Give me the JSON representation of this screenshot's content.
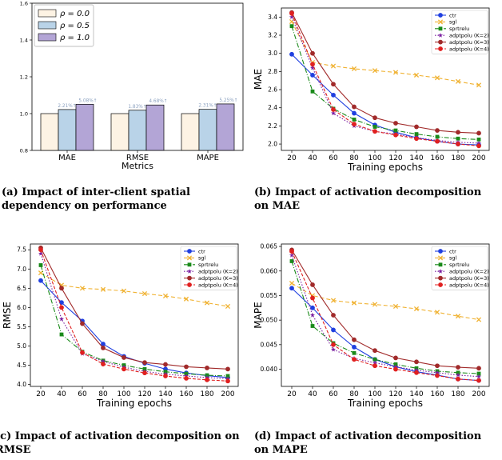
{
  "captions": {
    "a": {
      "label": "(a)",
      "text": "Impact of inter-client spatial dependency on performance"
    },
    "b": {
      "label": "(b)",
      "text": "Impact of activation decomposition on MAE"
    },
    "c": {
      "label": "(c)",
      "text": "Impact of activation decomposition on RMSE"
    },
    "d": {
      "label": "(d)",
      "text": "Impact of activation decomposition on MAPE"
    }
  },
  "chart_data": [
    {
      "id": "a",
      "type": "bar",
      "xlabel": "Metrics",
      "ylabel": "",
      "ylim": [
        0.8,
        1.6
      ],
      "yticks": [
        "0.8",
        "1.0",
        "1.2",
        "1.4",
        "1.6"
      ],
      "categories": [
        "MAE",
        "RMSE",
        "MAPE"
      ],
      "series": [
        {
          "name": "ρ = 0.0",
          "color": "#fdf3e4",
          "values": [
            1.0,
            1.0,
            1.0
          ]
        },
        {
          "name": "ρ = 0.5",
          "color": "#b9d3e8",
          "values": [
            1.0221,
            1.0183,
            1.0231
          ]
        },
        {
          "name": "ρ = 1.0",
          "color": "#b3a5d6",
          "values": [
            1.0508,
            1.0468,
            1.0525
          ]
        }
      ],
      "annotations": [
        {
          "category": 0,
          "series": 1,
          "text": "2.21%↑"
        },
        {
          "category": 0,
          "series": 2,
          "text": "5.08%↑"
        },
        {
          "category": 1,
          "series": 1,
          "text": "1.83%↑"
        },
        {
          "category": 1,
          "series": 2,
          "text": "4.68%↑"
        },
        {
          "category": 2,
          "series": 1,
          "text": "2.31%↑"
        },
        {
          "category": 2,
          "series": 2,
          "text": "5.25%↑"
        }
      ],
      "legend": "top-left"
    },
    {
      "id": "b",
      "type": "line",
      "xlabel": "Training epochs",
      "ylabel": "MAE",
      "x": [
        20,
        40,
        60,
        80,
        100,
        120,
        140,
        160,
        180,
        200
      ],
      "xlim": [
        10,
        210
      ],
      "ylim": [
        1.93,
        3.5
      ],
      "yticks": [
        2.0,
        2.2,
        2.4,
        2.6,
        2.8,
        3.0,
        3.2,
        3.4
      ],
      "ydecimals": 1,
      "legend": "top-right",
      "series": [
        {
          "name": "ctr",
          "values": [
            2.99,
            2.76,
            2.54,
            2.34,
            2.21,
            2.13,
            2.07,
            2.03,
            2.0,
            1.99
          ]
        },
        {
          "name": "sgl",
          "values": [
            3.35,
            2.9,
            2.86,
            2.83,
            2.81,
            2.79,
            2.76,
            2.73,
            2.69,
            2.65
          ]
        },
        {
          "name": "sprtrelu",
          "values": [
            3.3,
            2.58,
            2.39,
            2.27,
            2.19,
            2.15,
            2.11,
            2.08,
            2.06,
            2.05
          ]
        },
        {
          "name": "adptpolu (K=2)",
          "values": [
            3.4,
            2.84,
            2.34,
            2.2,
            2.14,
            2.11,
            2.07,
            2.04,
            2.02,
            2.01
          ]
        },
        {
          "name": "adptpolu (K=3)",
          "values": [
            3.45,
            3.0,
            2.66,
            2.41,
            2.29,
            2.23,
            2.19,
            2.15,
            2.13,
            2.12
          ]
        },
        {
          "name": "adptpolu (K=4)",
          "values": [
            3.44,
            2.88,
            2.38,
            2.22,
            2.14,
            2.1,
            2.06,
            2.03,
            2.0,
            1.98
          ]
        }
      ]
    },
    {
      "id": "c",
      "type": "line",
      "xlabel": "Training epochs",
      "ylabel": "RMSE",
      "x": [
        20,
        40,
        60,
        80,
        100,
        120,
        140,
        160,
        180,
        200
      ],
      "xlim": [
        10,
        210
      ],
      "ylim": [
        3.95,
        7.65
      ],
      "yticks": [
        4.0,
        4.5,
        5.0,
        5.5,
        6.0,
        6.5,
        7.0,
        7.5
      ],
      "ydecimals": 1,
      "legend": "top-right",
      "series": [
        {
          "name": "ctr",
          "values": [
            6.7,
            6.13,
            5.65,
            5.05,
            4.73,
            4.55,
            4.4,
            4.3,
            4.23,
            4.18
          ]
        },
        {
          "name": "sgl",
          "values": [
            6.9,
            6.58,
            6.5,
            6.47,
            6.43,
            6.36,
            6.3,
            6.22,
            6.12,
            6.03
          ]
        },
        {
          "name": "sprtrelu",
          "values": [
            7.1,
            5.3,
            4.85,
            4.62,
            4.5,
            4.4,
            4.33,
            4.28,
            4.24,
            4.22
          ]
        },
        {
          "name": "adptpolu (K=2)",
          "values": [
            7.4,
            5.7,
            4.8,
            4.6,
            4.45,
            4.34,
            4.27,
            4.22,
            4.18,
            4.15
          ]
        },
        {
          "name": "adptpolu (K=3)",
          "values": [
            7.55,
            6.5,
            5.58,
            4.95,
            4.7,
            4.57,
            4.52,
            4.46,
            4.43,
            4.4
          ]
        },
        {
          "name": "adptpolu (K=4)",
          "values": [
            7.5,
            6.0,
            4.83,
            4.53,
            4.4,
            4.3,
            4.22,
            4.16,
            4.12,
            4.09
          ]
        }
      ]
    },
    {
      "id": "d",
      "type": "line",
      "xlabel": "Training epochs",
      "ylabel": "MAPE",
      "x": [
        20,
        40,
        60,
        80,
        100,
        120,
        140,
        160,
        180,
        200
      ],
      "xlim": [
        10,
        210
      ],
      "ylim": [
        0.0365,
        0.0655
      ],
      "yticks": [
        0.04,
        0.045,
        0.05,
        0.055,
        0.06,
        0.065
      ],
      "ydecimals": 3,
      "legend": "top-right",
      "series": [
        {
          "name": "ctr",
          "values": [
            0.0565,
            0.0525,
            0.048,
            0.0445,
            0.042,
            0.0405,
            0.0395,
            0.0388,
            0.038,
            0.0377
          ]
        },
        {
          "name": "sgl",
          "values": [
            0.0575,
            0.055,
            0.054,
            0.0535,
            0.0532,
            0.0528,
            0.0523,
            0.0516,
            0.0508,
            0.0501
          ]
        },
        {
          "name": "sprtrelu",
          "values": [
            0.062,
            0.0488,
            0.0453,
            0.0433,
            0.042,
            0.041,
            0.0402,
            0.0396,
            0.0393,
            0.0391
          ]
        },
        {
          "name": "adptpolu (K=2)",
          "values": [
            0.0632,
            0.051,
            0.044,
            0.0422,
            0.0413,
            0.0405,
            0.0398,
            0.0393,
            0.0388,
            0.0385
          ]
        },
        {
          "name": "adptpolu (K=3)",
          "values": [
            0.0643,
            0.0572,
            0.051,
            0.046,
            0.0438,
            0.0423,
            0.0415,
            0.0407,
            0.0404,
            0.0402
          ]
        },
        {
          "name": "adptpolu (K=4)",
          "values": [
            0.064,
            0.0545,
            0.045,
            0.042,
            0.0407,
            0.04,
            0.0393,
            0.0387,
            0.038,
            0.0377
          ]
        }
      ]
    }
  ]
}
